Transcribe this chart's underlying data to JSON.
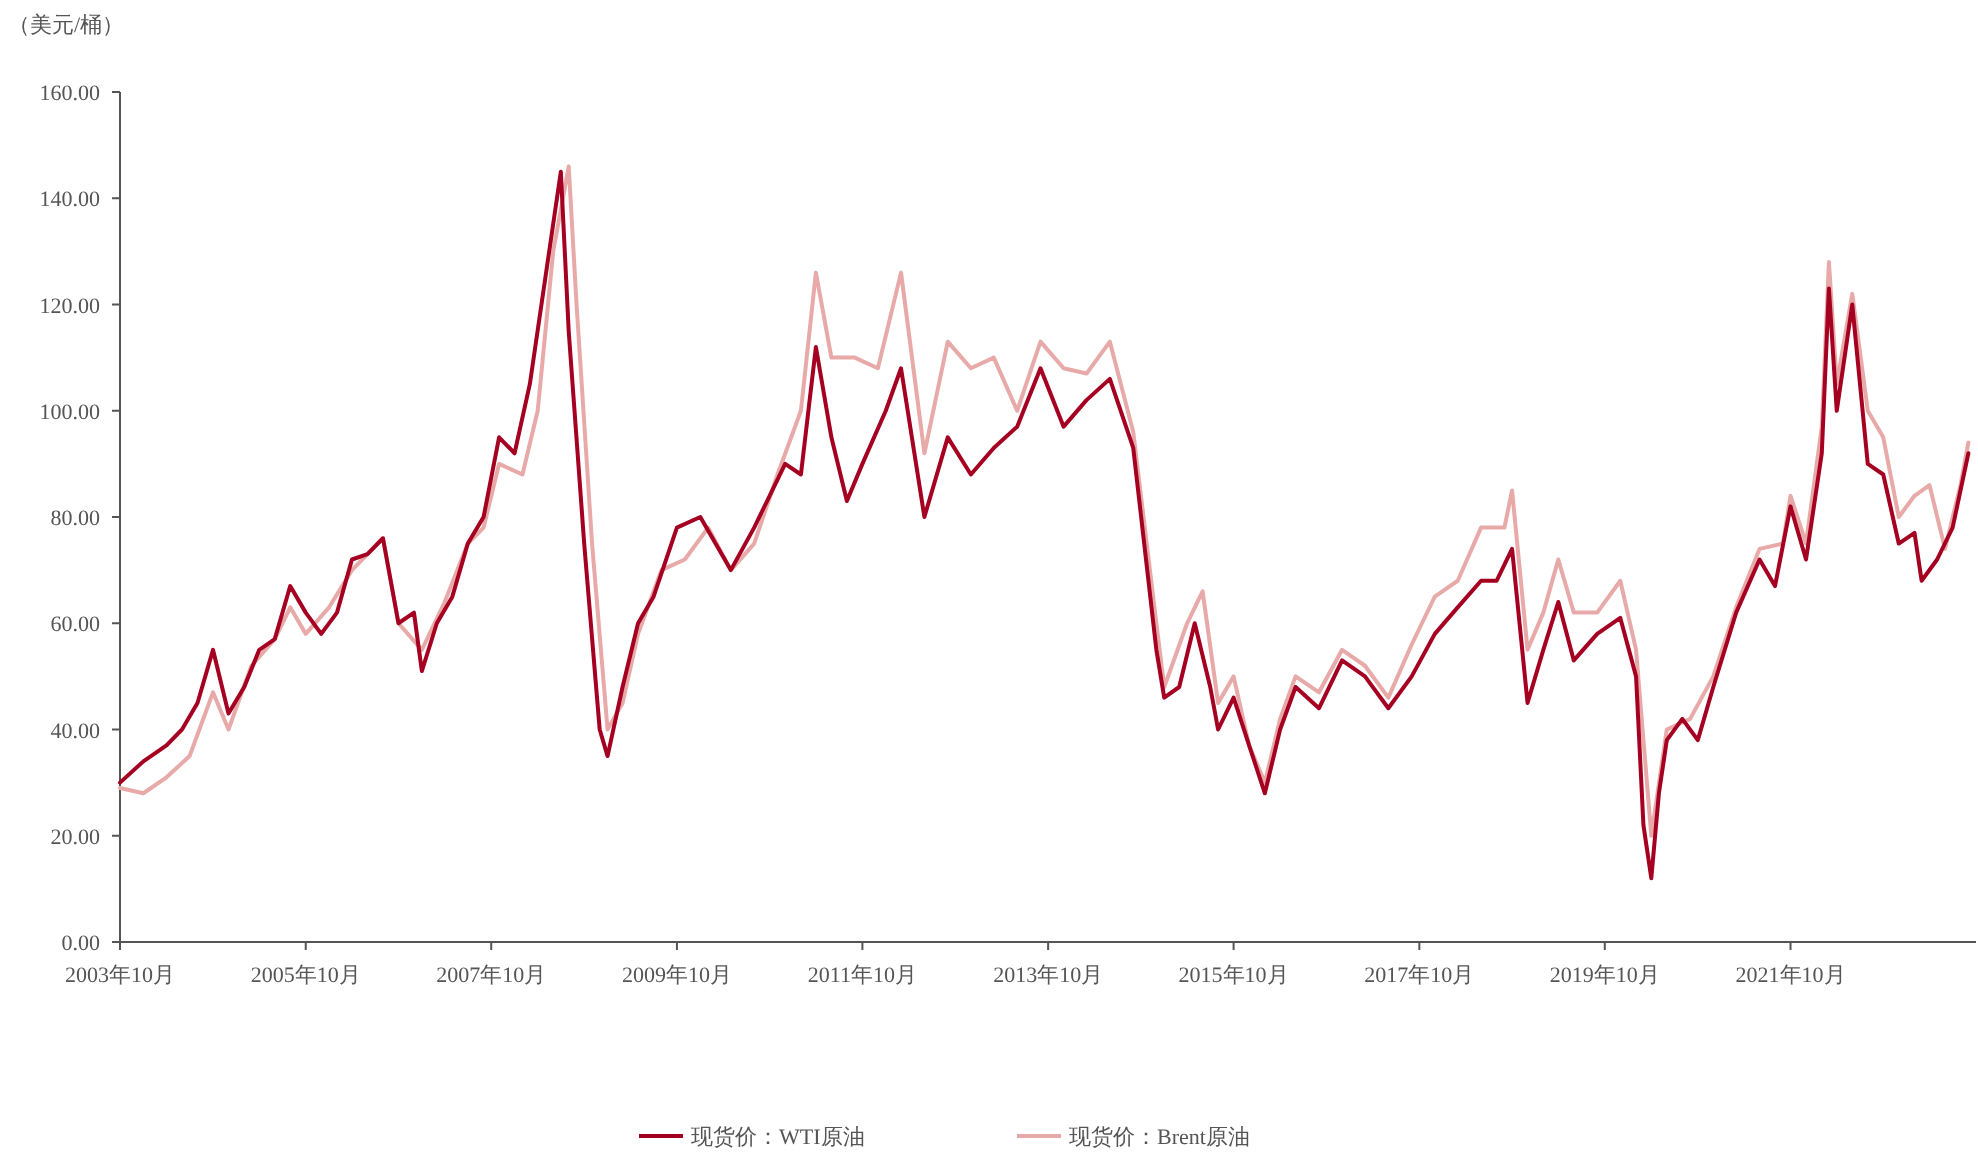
{
  "chart_data": {
    "type": "line",
    "ylabel": "（美元/桶）",
    "xlim": [
      "2003-10",
      "2023-10"
    ],
    "xticks": [
      {
        "value": "2003-10",
        "label": "2003年10月"
      },
      {
        "value": "2005-10",
        "label": "2005年10月"
      },
      {
        "value": "2007-10",
        "label": "2007年10月"
      },
      {
        "value": "2009-10",
        "label": "2009年10月"
      },
      {
        "value": "2011-10",
        "label": "2011年10月"
      },
      {
        "value": "2013-10",
        "label": "2013年10月"
      },
      {
        "value": "2015-10",
        "label": "2015年10月"
      },
      {
        "value": "2017-10",
        "label": "2017年10月"
      },
      {
        "value": "2019-10",
        "label": "2019年10月"
      },
      {
        "value": "2021-10",
        "label": "2021年10月"
      }
    ],
    "ylim": [
      0,
      160
    ],
    "yticks": [
      {
        "value": 0,
        "label": "0.00"
      },
      {
        "value": 20,
        "label": "20.00"
      },
      {
        "value": 40,
        "label": "40.00"
      },
      {
        "value": 60,
        "label": "60.00"
      },
      {
        "value": 80,
        "label": "80.00"
      },
      {
        "value": 100,
        "label": "100.00"
      },
      {
        "value": 120,
        "label": "120.00"
      },
      {
        "value": 140,
        "label": "140.00"
      },
      {
        "value": 160,
        "label": "160.00"
      }
    ],
    "grid": false,
    "legend": "bottom",
    "line_style": "solid",
    "series": [
      {
        "name": "现货价：WTI原油",
        "color": "#a50021",
        "x": [
          "2003-10",
          "2004-01",
          "2004-04",
          "2004-06",
          "2004-08",
          "2004-10",
          "2004-12",
          "2005-02",
          "2005-04",
          "2005-06",
          "2005-08",
          "2005-10",
          "2005-12",
          "2006-02",
          "2006-04",
          "2006-06",
          "2006-08",
          "2006-10",
          "2006-12",
          "2007-01",
          "2007-03",
          "2007-05",
          "2007-07",
          "2007-09",
          "2007-11",
          "2008-01",
          "2008-03",
          "2008-05",
          "2008-07",
          "2008-08",
          "2008-10",
          "2008-12",
          "2009-01",
          "2009-03",
          "2009-05",
          "2009-07",
          "2009-10",
          "2010-01",
          "2010-05",
          "2010-08",
          "2010-12",
          "2011-02",
          "2011-04",
          "2011-06",
          "2011-08",
          "2011-10",
          "2012-01",
          "2012-03",
          "2012-06",
          "2012-09",
          "2012-12",
          "2013-03",
          "2013-06",
          "2013-09",
          "2013-12",
          "2014-03",
          "2014-06",
          "2014-09",
          "2014-12",
          "2015-01",
          "2015-03",
          "2015-05",
          "2015-07",
          "2015-08",
          "2015-10",
          "2015-12",
          "2016-02",
          "2016-04",
          "2016-06",
          "2016-09",
          "2016-12",
          "2017-03",
          "2017-06",
          "2017-09",
          "2017-12",
          "2018-03",
          "2018-06",
          "2018-08",
          "2018-10",
          "2018-12",
          "2019-02",
          "2019-04",
          "2019-06",
          "2019-09",
          "2019-12",
          "2020-02",
          "2020-03",
          "2020-04",
          "2020-05",
          "2020-06",
          "2020-08",
          "2020-10",
          "2020-12",
          "2021-03",
          "2021-06",
          "2021-08",
          "2021-10",
          "2021-12",
          "2022-02",
          "2022-03",
          "2022-04",
          "2022-06",
          "2022-08",
          "2022-10",
          "2022-12",
          "2023-02",
          "2023-03",
          "2023-05",
          "2023-07",
          "2023-09"
        ],
        "values": [
          30,
          34,
          37,
          40,
          45,
          55,
          43,
          48,
          55,
          57,
          67,
          62,
          58,
          62,
          72,
          73,
          76,
          60,
          62,
          51,
          60,
          65,
          75,
          80,
          95,
          92,
          105,
          125,
          145,
          115,
          75,
          40,
          35,
          48,
          60,
          65,
          78,
          80,
          70,
          78,
          90,
          88,
          112,
          95,
          83,
          90,
          100,
          108,
          80,
          95,
          88,
          93,
          97,
          108,
          97,
          102,
          106,
          93,
          55,
          46,
          48,
          60,
          48,
          40,
          46,
          37,
          28,
          40,
          48,
          44,
          53,
          50,
          44,
          50,
          58,
          63,
          68,
          68,
          74,
          45,
          55,
          64,
          53,
          58,
          61,
          50,
          22,
          12,
          28,
          38,
          42,
          38,
          48,
          62,
          72,
          67,
          82,
          72,
          92,
          123,
          100,
          120,
          90,
          88,
          75,
          77,
          68,
          72,
          78,
          92
        ]
      },
      {
        "name": "现货价：Brent原油",
        "color": "#e8aaa8",
        "x": [
          "2003-10",
          "2004-01",
          "2004-04",
          "2004-07",
          "2004-10",
          "2004-12",
          "2005-03",
          "2005-06",
          "2005-08",
          "2005-10",
          "2006-01",
          "2006-04",
          "2006-08",
          "2006-10",
          "2007-01",
          "2007-04",
          "2007-07",
          "2007-09",
          "2007-11",
          "2008-02",
          "2008-04",
          "2008-06",
          "2008-08",
          "2008-09",
          "2008-11",
          "2009-01",
          "2009-03",
          "2009-05",
          "2009-08",
          "2009-11",
          "2010-02",
          "2010-05",
          "2010-08",
          "2010-11",
          "2011-02",
          "2011-04",
          "2011-06",
          "2011-09",
          "2011-12",
          "2012-03",
          "2012-06",
          "2012-09",
          "2012-12",
          "2013-03",
          "2013-06",
          "2013-09",
          "2013-12",
          "2014-03",
          "2014-06",
          "2014-09",
          "2014-12",
          "2015-01",
          "2015-04",
          "2015-06",
          "2015-08",
          "2015-10",
          "2015-12",
          "2016-02",
          "2016-04",
          "2016-06",
          "2016-09",
          "2016-12",
          "2017-03",
          "2017-06",
          "2017-09",
          "2017-12",
          "2018-03",
          "2018-06",
          "2018-09",
          "2018-10",
          "2018-12",
          "2019-02",
          "2019-04",
          "2019-06",
          "2019-09",
          "2019-12",
          "2020-02",
          "2020-04",
          "2020-06",
          "2020-09",
          "2020-12",
          "2021-03",
          "2021-06",
          "2021-09",
          "2021-10",
          "2021-12",
          "2022-02",
          "2022-03",
          "2022-04",
          "2022-06",
          "2022-08",
          "2022-10",
          "2022-12",
          "2023-02",
          "2023-04",
          "2023-06",
          "2023-08",
          "2023-09"
        ],
        "values": [
          29,
          28,
          31,
          35,
          47,
          40,
          52,
          57,
          63,
          58,
          63,
          70,
          76,
          60,
          55,
          64,
          75,
          78,
          90,
          88,
          100,
          130,
          146,
          120,
          75,
          40,
          45,
          58,
          70,
          72,
          78,
          70,
          75,
          88,
          100,
          126,
          110,
          110,
          108,
          126,
          92,
          113,
          108,
          110,
          100,
          113,
          108,
          107,
          113,
          96,
          60,
          48,
          60,
          66,
          45,
          50,
          37,
          30,
          42,
          50,
          47,
          55,
          52,
          46,
          56,
          65,
          68,
          78,
          78,
          85,
          55,
          62,
          72,
          62,
          62,
          68,
          55,
          20,
          40,
          42,
          50,
          63,
          74,
          75,
          84,
          75,
          97,
          128,
          105,
          122,
          100,
          95,
          80,
          84,
          86,
          74,
          86,
          94
        ]
      }
    ]
  }
}
